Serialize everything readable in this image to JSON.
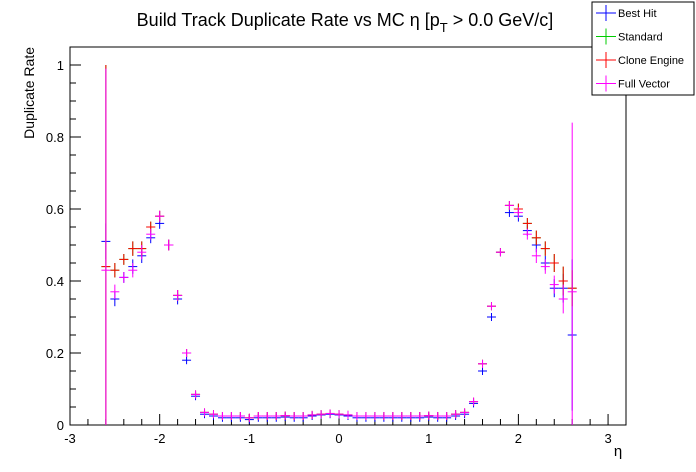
{
  "chart_data": {
    "type": "scatter",
    "title_main": "Build Track Duplicate Rate vs MC η [p",
    "title_sub": "T",
    "title_tail": " > 0.0 GeV/c]",
    "xlabel": "η",
    "ylabel": "Duplicate Rate",
    "xlim": [
      -3.0,
      3.2
    ],
    "ylim": [
      0,
      1.05
    ],
    "xticks": [
      -3,
      -2,
      -1,
      0,
      1,
      2,
      3
    ],
    "xtick_labels": [
      "-3",
      "-2",
      "-1",
      "0",
      "1",
      "2",
      "3"
    ],
    "yticks": [
      0,
      0.2,
      0.4,
      0.6,
      0.8,
      1
    ],
    "ytick_labels": [
      "0",
      "0.2",
      "0.4",
      "0.6",
      "0.8",
      "1"
    ],
    "bin_half_width": 0.05,
    "legend_position": "top-right",
    "series": [
      {
        "name": "Best Hit",
        "color": "#0000ff",
        "x": [
          -2.6,
          -2.5,
          -2.4,
          -2.3,
          -2.2,
          -2.1,
          -2.0,
          -1.9,
          -1.8,
          -1.7,
          -1.6,
          -1.5,
          -1.4,
          -1.3,
          -1.2,
          -1.1,
          -1.0,
          -0.9,
          -0.8,
          -0.7,
          -0.6,
          -0.5,
          -0.4,
          -0.3,
          -0.2,
          -0.1,
          0.0,
          0.1,
          0.2,
          0.3,
          0.4,
          0.5,
          0.6,
          0.7,
          0.8,
          0.9,
          1.0,
          1.1,
          1.2,
          1.3,
          1.4,
          1.5,
          1.6,
          1.7,
          1.8,
          1.9,
          2.0,
          2.1,
          2.2,
          2.3,
          2.4,
          2.5,
          2.6
        ],
        "y": [
          0.51,
          0.35,
          0.41,
          0.44,
          0.47,
          0.52,
          0.56,
          0.5,
          0.35,
          0.18,
          0.08,
          0.03,
          0.025,
          0.02,
          0.02,
          0.02,
          0.015,
          0.02,
          0.02,
          0.02,
          0.022,
          0.02,
          0.02,
          0.025,
          0.028,
          0.03,
          0.028,
          0.025,
          0.02,
          0.02,
          0.02,
          0.02,
          0.02,
          0.02,
          0.02,
          0.02,
          0.022,
          0.02,
          0.02,
          0.025,
          0.03,
          0.06,
          0.15,
          0.3,
          0.48,
          0.59,
          0.58,
          0.54,
          0.5,
          0.45,
          0.38,
          0.38,
          0.25
        ],
        "err": [
          0.05,
          0.02,
          0.015,
          0.02,
          0.02,
          0.015,
          0.015,
          0.015,
          0.015,
          0.01,
          0.008,
          0.005,
          0.004,
          0.003,
          0.003,
          0.003,
          0.003,
          0.003,
          0.003,
          0.003,
          0.003,
          0.003,
          0.003,
          0.003,
          0.003,
          0.003,
          0.003,
          0.003,
          0.003,
          0.003,
          0.003,
          0.003,
          0.003,
          0.003,
          0.003,
          0.003,
          0.003,
          0.003,
          0.003,
          0.004,
          0.005,
          0.008,
          0.01,
          0.01,
          0.01,
          0.012,
          0.015,
          0.015,
          0.02,
          0.02,
          0.025,
          0.04,
          0.21
        ]
      },
      {
        "name": "Standard",
        "color": "#00cc00",
        "x": [
          -2.6,
          -2.5,
          -2.4,
          -2.3,
          -2.2,
          -2.1,
          -2.0,
          -1.9,
          -1.8,
          -1.7,
          -1.6,
          -1.5,
          -1.4,
          -1.3,
          -1.2,
          -1.1,
          -1.0,
          -0.9,
          -0.8,
          -0.7,
          -0.6,
          -0.5,
          -0.4,
          -0.3,
          -0.2,
          -0.1,
          0.0,
          0.1,
          0.2,
          0.3,
          0.4,
          0.5,
          0.6,
          0.7,
          0.8,
          0.9,
          1.0,
          1.1,
          1.2,
          1.3,
          1.4,
          1.5,
          1.6,
          1.7,
          1.8,
          1.9,
          2.0,
          2.1,
          2.2,
          2.3,
          2.4,
          2.5,
          2.6
        ],
        "y": [
          0.44,
          0.43,
          0.46,
          0.49,
          0.49,
          0.55,
          0.58,
          0.5,
          0.36,
          0.2,
          0.085,
          0.035,
          0.03,
          0.025,
          0.025,
          0.025,
          0.02,
          0.025,
          0.025,
          0.025,
          0.026,
          0.025,
          0.025,
          0.028,
          0.03,
          0.032,
          0.03,
          0.028,
          0.025,
          0.025,
          0.025,
          0.025,
          0.025,
          0.025,
          0.025,
          0.025,
          0.026,
          0.025,
          0.025,
          0.03,
          0.035,
          0.065,
          0.17,
          0.33,
          0.48,
          0.61,
          0.6,
          0.56,
          0.52,
          0.49,
          0.45,
          0.4,
          0.38
        ],
        "err": [
          0.56,
          0.02,
          0.015,
          0.02,
          0.02,
          0.015,
          0.015,
          0.015,
          0.015,
          0.01,
          0.008,
          0.005,
          0.004,
          0.003,
          0.003,
          0.003,
          0.003,
          0.003,
          0.003,
          0.003,
          0.003,
          0.003,
          0.003,
          0.003,
          0.003,
          0.003,
          0.003,
          0.003,
          0.003,
          0.003,
          0.003,
          0.003,
          0.003,
          0.003,
          0.003,
          0.003,
          0.003,
          0.003,
          0.003,
          0.004,
          0.005,
          0.008,
          0.01,
          0.01,
          0.01,
          0.012,
          0.015,
          0.015,
          0.02,
          0.02,
          0.025,
          0.04,
          0.05
        ]
      },
      {
        "name": "Clone Engine",
        "color": "#ff0000",
        "x": [
          -2.6,
          -2.5,
          -2.4,
          -2.3,
          -2.2,
          -2.1,
          -2.0,
          -1.9,
          -1.8,
          -1.7,
          -1.6,
          -1.5,
          -1.4,
          -1.3,
          -1.2,
          -1.1,
          -1.0,
          -0.9,
          -0.8,
          -0.7,
          -0.6,
          -0.5,
          -0.4,
          -0.3,
          -0.2,
          -0.1,
          0.0,
          0.1,
          0.2,
          0.3,
          0.4,
          0.5,
          0.6,
          0.7,
          0.8,
          0.9,
          1.0,
          1.1,
          1.2,
          1.3,
          1.4,
          1.5,
          1.6,
          1.7,
          1.8,
          1.9,
          2.0,
          2.1,
          2.2,
          2.3,
          2.4,
          2.5,
          2.6
        ],
        "y": [
          0.44,
          0.43,
          0.46,
          0.49,
          0.49,
          0.55,
          0.58,
          0.5,
          0.36,
          0.2,
          0.085,
          0.035,
          0.03,
          0.025,
          0.025,
          0.025,
          0.02,
          0.025,
          0.025,
          0.025,
          0.026,
          0.025,
          0.025,
          0.028,
          0.03,
          0.032,
          0.03,
          0.028,
          0.025,
          0.025,
          0.025,
          0.025,
          0.025,
          0.025,
          0.025,
          0.025,
          0.026,
          0.025,
          0.025,
          0.03,
          0.035,
          0.065,
          0.17,
          0.33,
          0.48,
          0.61,
          0.6,
          0.56,
          0.52,
          0.49,
          0.45,
          0.4,
          0.38
        ],
        "err": [
          0.56,
          0.02,
          0.015,
          0.02,
          0.02,
          0.015,
          0.015,
          0.015,
          0.015,
          0.01,
          0.008,
          0.005,
          0.004,
          0.003,
          0.003,
          0.003,
          0.003,
          0.003,
          0.003,
          0.003,
          0.003,
          0.003,
          0.003,
          0.003,
          0.003,
          0.003,
          0.003,
          0.003,
          0.003,
          0.003,
          0.003,
          0.003,
          0.003,
          0.003,
          0.003,
          0.003,
          0.003,
          0.003,
          0.003,
          0.004,
          0.005,
          0.008,
          0.01,
          0.01,
          0.01,
          0.012,
          0.015,
          0.015,
          0.02,
          0.02,
          0.025,
          0.04,
          0.05
        ]
      },
      {
        "name": "Full Vector",
        "color": "#ff00ff",
        "x": [
          -2.6,
          -2.5,
          -2.4,
          -2.3,
          -2.2,
          -2.1,
          -2.0,
          -1.9,
          -1.8,
          -1.7,
          -1.6,
          -1.5,
          -1.4,
          -1.3,
          -1.2,
          -1.1,
          -1.0,
          -0.9,
          -0.8,
          -0.7,
          -0.6,
          -0.5,
          -0.4,
          -0.3,
          -0.2,
          -0.1,
          0.0,
          0.1,
          0.2,
          0.3,
          0.4,
          0.5,
          0.6,
          0.7,
          0.8,
          0.9,
          1.0,
          1.1,
          1.2,
          1.3,
          1.4,
          1.5,
          1.6,
          1.7,
          1.8,
          1.9,
          2.0,
          2.1,
          2.2,
          2.3,
          2.4,
          2.5,
          2.6
        ],
        "y": [
          0.43,
          0.37,
          0.41,
          0.43,
          0.48,
          0.53,
          0.58,
          0.5,
          0.36,
          0.2,
          0.085,
          0.035,
          0.03,
          0.025,
          0.025,
          0.025,
          0.02,
          0.025,
          0.025,
          0.025,
          0.026,
          0.025,
          0.025,
          0.028,
          0.03,
          0.032,
          0.03,
          0.028,
          0.025,
          0.025,
          0.025,
          0.025,
          0.025,
          0.025,
          0.025,
          0.025,
          0.026,
          0.025,
          0.025,
          0.03,
          0.035,
          0.065,
          0.17,
          0.33,
          0.48,
          0.61,
          0.59,
          0.53,
          0.47,
          0.44,
          0.39,
          0.35,
          0.37
        ],
        "err": [
          0.56,
          0.02,
          0.015,
          0.02,
          0.02,
          0.015,
          0.015,
          0.015,
          0.015,
          0.01,
          0.008,
          0.005,
          0.004,
          0.003,
          0.003,
          0.003,
          0.003,
          0.003,
          0.003,
          0.003,
          0.003,
          0.003,
          0.003,
          0.003,
          0.003,
          0.003,
          0.003,
          0.003,
          0.003,
          0.003,
          0.003,
          0.003,
          0.003,
          0.003,
          0.003,
          0.003,
          0.003,
          0.003,
          0.003,
          0.004,
          0.005,
          0.008,
          0.01,
          0.01,
          0.01,
          0.012,
          0.015,
          0.015,
          0.02,
          0.02,
          0.025,
          0.04,
          0.47
        ]
      }
    ]
  }
}
